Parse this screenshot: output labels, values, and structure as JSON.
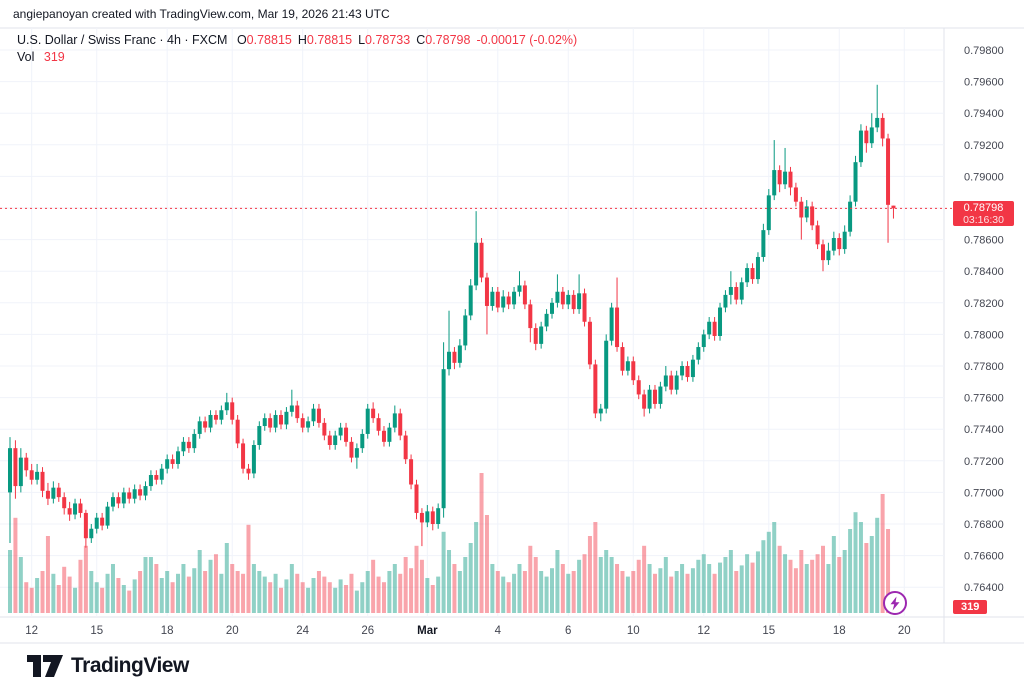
{
  "attribution": "angiepanoyan created with TradingView.com, Mar 19, 2026 21:43 UTC",
  "legend": {
    "symbol_title": "U.S. Dollar / Swiss Franc · 4h · FXCM",
    "o_label": "O",
    "o_value": "0.78815",
    "h_label": "H",
    "h_value": "0.78815",
    "l_label": "L",
    "l_value": "0.78733",
    "c_label": "C",
    "c_value": "0.78798",
    "change": "-0.00017 (-0.02%)",
    "volume_label": "Vol",
    "volume_value": "319"
  },
  "price_axis": {
    "tick_labels": [
      "0.79800",
      "0.79600",
      "0.79400",
      "0.79200",
      "0.79000",
      "0.78800",
      "0.78600",
      "0.78400",
      "0.78200",
      "0.78000",
      "0.77800",
      "0.77600",
      "0.77400",
      "0.77200",
      "0.77000",
      "0.76800",
      "0.76600",
      "0.76400"
    ],
    "last_price_badge": {
      "price": "0.78798",
      "countdown": "03:16:30"
    },
    "volume_badge": "319"
  },
  "time_axis": {
    "labels": [
      {
        "text": "12",
        "i": 4
      },
      {
        "text": "15",
        "i": 16
      },
      {
        "text": "18",
        "i": 29
      },
      {
        "text": "20",
        "i": 41
      },
      {
        "text": "24",
        "i": 54
      },
      {
        "text": "26",
        "i": 66
      },
      {
        "text": "Mar",
        "i": 77,
        "bold": true
      },
      {
        "text": "4",
        "i": 90
      },
      {
        "text": "6",
        "i": 103
      },
      {
        "text": "10",
        "i": 115
      },
      {
        "text": "12",
        "i": 128
      },
      {
        "text": "15",
        "i": 140
      },
      {
        "text": "18",
        "i": 153
      },
      {
        "text": "20",
        "i": 165
      }
    ]
  },
  "footer": {
    "brand": "TradingView"
  },
  "icons": {
    "boost_button": "lightning-bolt-icon",
    "brand_logo": "tradingview-mark"
  },
  "colors": {
    "up": "#089981",
    "down": "#f23645",
    "vol_up": "rgba(8,153,129,0.45)",
    "vol_down": "rgba(242,54,69,0.45)",
    "grid": "#f0f3fa",
    "border": "#e0e3eb",
    "text": "#131722",
    "axis_text": "#434651",
    "badge_red": "#f23645",
    "accent_purple": "#9c27b0",
    "price_line": "#f23645"
  },
  "chart_data": {
    "type": "candlestick+volume",
    "title": "U.S. Dollar / Swiss Franc",
    "interval": "4h",
    "exchange": "FXCM",
    "current_ohlc": {
      "open": 0.78815,
      "high": 0.78815,
      "low": 0.78733,
      "close": 0.78798,
      "change": -0.00017,
      "change_pct": -0.02
    },
    "current_volume": 319,
    "countdown": "03:16:30",
    "y_axis": {
      "min": 0.764,
      "max": 0.798,
      "step": 0.002,
      "gridlines_price_int": [
        79800,
        79600,
        79400,
        79200,
        79000,
        78800,
        78600,
        78400,
        78200,
        78000,
        77800,
        77600,
        77400,
        77200,
        77000,
        76800,
        76600,
        76400
      ]
    },
    "price_int_scale": 100000,
    "volume_unit": "relative-height-pct (tallest bar = 100)",
    "candles_format": [
      "open",
      "high",
      "low",
      "close",
      "volume_pct"
    ],
    "candles": [
      [
        77000,
        77350,
        76680,
        77280,
        45
      ],
      [
        77280,
        77330,
        76960,
        77040,
        68
      ],
      [
        77040,
        77280,
        77000,
        77220,
        40
      ],
      [
        77220,
        77250,
        77100,
        77140,
        22
      ],
      [
        77140,
        77180,
        77050,
        77080,
        18
      ],
      [
        77080,
        77180,
        77050,
        77130,
        25
      ],
      [
        77130,
        77160,
        76970,
        77010,
        30
      ],
      [
        77010,
        77060,
        76920,
        76960,
        55
      ],
      [
        76960,
        77070,
        76930,
        77030,
        28
      ],
      [
        77030,
        77060,
        76940,
        76970,
        20
      ],
      [
        76970,
        77000,
        76860,
        76900,
        33
      ],
      [
        76900,
        76940,
        76820,
        76860,
        26
      ],
      [
        76860,
        76960,
        76830,
        76930,
        18
      ],
      [
        76930,
        76960,
        76840,
        76870,
        38
      ],
      [
        76870,
        76890,
        76650,
        76710,
        48
      ],
      [
        76710,
        76800,
        76680,
        76770,
        30
      ],
      [
        76770,
        76870,
        76740,
        76840,
        22
      ],
      [
        76840,
        76870,
        76760,
        76790,
        18
      ],
      [
        76790,
        76940,
        76770,
        76910,
        28
      ],
      [
        76910,
        77000,
        76880,
        76970,
        35
      ],
      [
        76970,
        77000,
        76900,
        76930,
        25
      ],
      [
        76930,
        77030,
        76900,
        77000,
        20
      ],
      [
        77000,
        77030,
        76930,
        76960,
        16
      ],
      [
        76960,
        77050,
        76930,
        77020,
        24
      ],
      [
        77020,
        77050,
        76950,
        76980,
        30
      ],
      [
        76980,
        77070,
        76950,
        77040,
        40
      ],
      [
        77040,
        77140,
        77010,
        77110,
        40
      ],
      [
        77110,
        77140,
        77050,
        77080,
        35
      ],
      [
        77080,
        77180,
        77050,
        77150,
        25
      ],
      [
        77150,
        77240,
        77120,
        77210,
        30
      ],
      [
        77210,
        77240,
        77150,
        77180,
        22
      ],
      [
        77180,
        77290,
        77150,
        77260,
        28
      ],
      [
        77260,
        77350,
        77230,
        77320,
        35
      ],
      [
        77320,
        77350,
        77250,
        77280,
        26
      ],
      [
        77280,
        77400,
        77250,
        77370,
        32
      ],
      [
        77370,
        77480,
        77340,
        77450,
        45
      ],
      [
        77450,
        77480,
        77380,
        77410,
        30
      ],
      [
        77410,
        77520,
        77380,
        77490,
        38
      ],
      [
        77490,
        77520,
        77430,
        77460,
        42
      ],
      [
        77460,
        77550,
        77430,
        77520,
        28
      ],
      [
        77520,
        77630,
        77490,
        77570,
        50
      ],
      [
        77570,
        77600,
        77430,
        77460,
        35
      ],
      [
        77460,
        77490,
        77280,
        77310,
        30
      ],
      [
        77310,
        77340,
        77120,
        77150,
        28
      ],
      [
        77150,
        77180,
        77080,
        77120,
        63
      ],
      [
        77120,
        77330,
        77090,
        77300,
        35
      ],
      [
        77300,
        77450,
        77270,
        77420,
        30
      ],
      [
        77420,
        77500,
        77390,
        77470,
        26
      ],
      [
        77470,
        77500,
        77380,
        77410,
        22
      ],
      [
        77410,
        77520,
        77380,
        77490,
        28
      ],
      [
        77490,
        77520,
        77400,
        77430,
        18
      ],
      [
        77430,
        77540,
        77400,
        77510,
        24
      ],
      [
        77510,
        77650,
        77480,
        77550,
        35
      ],
      [
        77550,
        77580,
        77440,
        77470,
        28
      ],
      [
        77470,
        77500,
        77380,
        77410,
        22
      ],
      [
        77410,
        77480,
        77380,
        77450,
        18
      ],
      [
        77450,
        77560,
        77420,
        77530,
        25
      ],
      [
        77530,
        77560,
        77410,
        77440,
        30
      ],
      [
        77440,
        77470,
        77330,
        77360,
        26
      ],
      [
        77360,
        77390,
        77270,
        77300,
        22
      ],
      [
        77300,
        77390,
        77270,
        77360,
        18
      ],
      [
        77360,
        77440,
        77330,
        77410,
        24
      ],
      [
        77410,
        77440,
        77290,
        77320,
        20
      ],
      [
        77320,
        77350,
        77190,
        77220,
        28
      ],
      [
        77220,
        77310,
        77150,
        77280,
        16
      ],
      [
        77280,
        77400,
        77250,
        77370,
        22
      ],
      [
        77370,
        77560,
        77340,
        77530,
        30
      ],
      [
        77530,
        77570,
        77440,
        77470,
        38
      ],
      [
        77470,
        77500,
        77360,
        77390,
        26
      ],
      [
        77390,
        77420,
        77290,
        77320,
        22
      ],
      [
        77320,
        77440,
        77290,
        77410,
        30
      ],
      [
        77410,
        77550,
        77380,
        77500,
        35
      ],
      [
        77500,
        77530,
        77330,
        77360,
        28
      ],
      [
        77360,
        77390,
        77180,
        77210,
        40
      ],
      [
        77210,
        77240,
        77020,
        77050,
        32
      ],
      [
        77050,
        77080,
        76830,
        76870,
        48
      ],
      [
        76870,
        76900,
        76660,
        76810,
        38
      ],
      [
        76810,
        76920,
        76780,
        76880,
        25
      ],
      [
        76880,
        76910,
        76760,
        76800,
        20
      ],
      [
        76800,
        76930,
        76770,
        76900,
        26
      ],
      [
        76900,
        77950,
        76840,
        77780,
        58
      ],
      [
        77780,
        78150,
        77740,
        77890,
        45
      ],
      [
        77890,
        77920,
        77780,
        77820,
        35
      ],
      [
        77820,
        77970,
        77790,
        77930,
        30
      ],
      [
        77930,
        78160,
        77900,
        78120,
        40
      ],
      [
        78120,
        78350,
        78090,
        78310,
        50
      ],
      [
        78310,
        78780,
        78280,
        78580,
        65
      ],
      [
        78580,
        78610,
        78330,
        78360,
        100
      ],
      [
        78360,
        78390,
        78000,
        78180,
        70
      ],
      [
        78180,
        78300,
        78150,
        78270,
        35
      ],
      [
        78270,
        78300,
        78140,
        78170,
        30
      ],
      [
        78170,
        78280,
        78140,
        78240,
        26
      ],
      [
        78240,
        78270,
        78160,
        78190,
        22
      ],
      [
        78190,
        78300,
        78160,
        78270,
        28
      ],
      [
        78270,
        78400,
        78240,
        78310,
        35
      ],
      [
        78310,
        78340,
        78160,
        78190,
        30
      ],
      [
        78190,
        78220,
        77950,
        78040,
        48
      ],
      [
        78040,
        78070,
        77900,
        77940,
        40
      ],
      [
        77940,
        78080,
        77910,
        78050,
        30
      ],
      [
        78050,
        78160,
        78020,
        78130,
        26
      ],
      [
        78130,
        78230,
        78100,
        78200,
        32
      ],
      [
        78200,
        78380,
        78170,
        78270,
        45
      ],
      [
        78270,
        78300,
        78160,
        78190,
        35
      ],
      [
        78190,
        78280,
        78160,
        78250,
        28
      ],
      [
        78250,
        78280,
        78130,
        78160,
        30
      ],
      [
        78160,
        78380,
        78130,
        78260,
        38
      ],
      [
        78260,
        78290,
        78050,
        78080,
        42
      ],
      [
        78080,
        78110,
        77780,
        77810,
        55
      ],
      [
        77810,
        77840,
        77470,
        77500,
        65
      ],
      [
        77500,
        77560,
        77450,
        77530,
        40
      ],
      [
        77530,
        78000,
        77500,
        77960,
        45
      ],
      [
        77960,
        78200,
        77930,
        78170,
        40
      ],
      [
        78170,
        78360,
        77890,
        77920,
        35
      ],
      [
        77920,
        77950,
        77740,
        77770,
        30
      ],
      [
        77770,
        77860,
        77740,
        77830,
        26
      ],
      [
        77830,
        77860,
        77680,
        77710,
        30
      ],
      [
        77710,
        77740,
        77590,
        77620,
        38
      ],
      [
        77620,
        77650,
        77480,
        77530,
        48
      ],
      [
        77530,
        77680,
        77500,
        77650,
        35
      ],
      [
        77650,
        77680,
        77530,
        77560,
        28
      ],
      [
        77560,
        77700,
        77530,
        77670,
        32
      ],
      [
        77670,
        77800,
        77640,
        77740,
        40
      ],
      [
        77740,
        77770,
        77620,
        77650,
        26
      ],
      [
        77650,
        77770,
        77620,
        77740,
        30
      ],
      [
        77740,
        77830,
        77710,
        77800,
        35
      ],
      [
        77800,
        77830,
        77700,
        77730,
        28
      ],
      [
        77730,
        77870,
        77700,
        77840,
        32
      ],
      [
        77840,
        77950,
        77810,
        77920,
        38
      ],
      [
        77920,
        78030,
        77890,
        78000,
        42
      ],
      [
        78000,
        78110,
        77970,
        78080,
        35
      ],
      [
        78080,
        78110,
        77960,
        77990,
        28
      ],
      [
        77990,
        78200,
        77960,
        78170,
        36
      ],
      [
        78170,
        78280,
        78140,
        78250,
        40
      ],
      [
        78250,
        78400,
        78190,
        78300,
        45
      ],
      [
        78300,
        78330,
        78190,
        78220,
        30
      ],
      [
        78220,
        78360,
        78190,
        78330,
        34
      ],
      [
        78330,
        78450,
        78300,
        78420,
        42
      ],
      [
        78420,
        78450,
        78320,
        78350,
        36
      ],
      [
        78350,
        78520,
        78320,
        78490,
        44
      ],
      [
        78490,
        78700,
        78460,
        78660,
        52
      ],
      [
        78660,
        78920,
        78630,
        78880,
        58
      ],
      [
        78880,
        79230,
        78850,
        79040,
        65
      ],
      [
        79040,
        79070,
        78900,
        78950,
        48
      ],
      [
        78950,
        79180,
        78920,
        79030,
        42
      ],
      [
        79030,
        79060,
        78880,
        78930,
        38
      ],
      [
        78930,
        78960,
        78810,
        78840,
        32
      ],
      [
        78840,
        78870,
        78600,
        78740,
        45
      ],
      [
        78740,
        78850,
        78710,
        78810,
        35
      ],
      [
        78810,
        78840,
        78660,
        78690,
        38
      ],
      [
        78690,
        78720,
        78540,
        78570,
        42
      ],
      [
        78570,
        78600,
        78400,
        78470,
        48
      ],
      [
        78470,
        78580,
        78440,
        78530,
        35
      ],
      [
        78530,
        78650,
        78500,
        78610,
        55
      ],
      [
        78610,
        78640,
        78500,
        78540,
        40
      ],
      [
        78540,
        78690,
        78510,
        78650,
        45
      ],
      [
        78650,
        78880,
        78620,
        78840,
        60
      ],
      [
        78840,
        79130,
        78810,
        79090,
        72
      ],
      [
        79090,
        79330,
        79060,
        79290,
        65
      ],
      [
        79290,
        79320,
        79150,
        79210,
        50
      ],
      [
        79210,
        79400,
        79180,
        79310,
        55
      ],
      [
        79310,
        79580,
        79280,
        79370,
        68
      ],
      [
        79370,
        79400,
        79190,
        79240,
        85
      ],
      [
        79240,
        79270,
        78580,
        78820,
        60
      ],
      [
        78815,
        78815,
        78733,
        78798,
        8
      ]
    ],
    "last_price_int": 78798,
    "legend_position": "top-left",
    "grid": true
  }
}
